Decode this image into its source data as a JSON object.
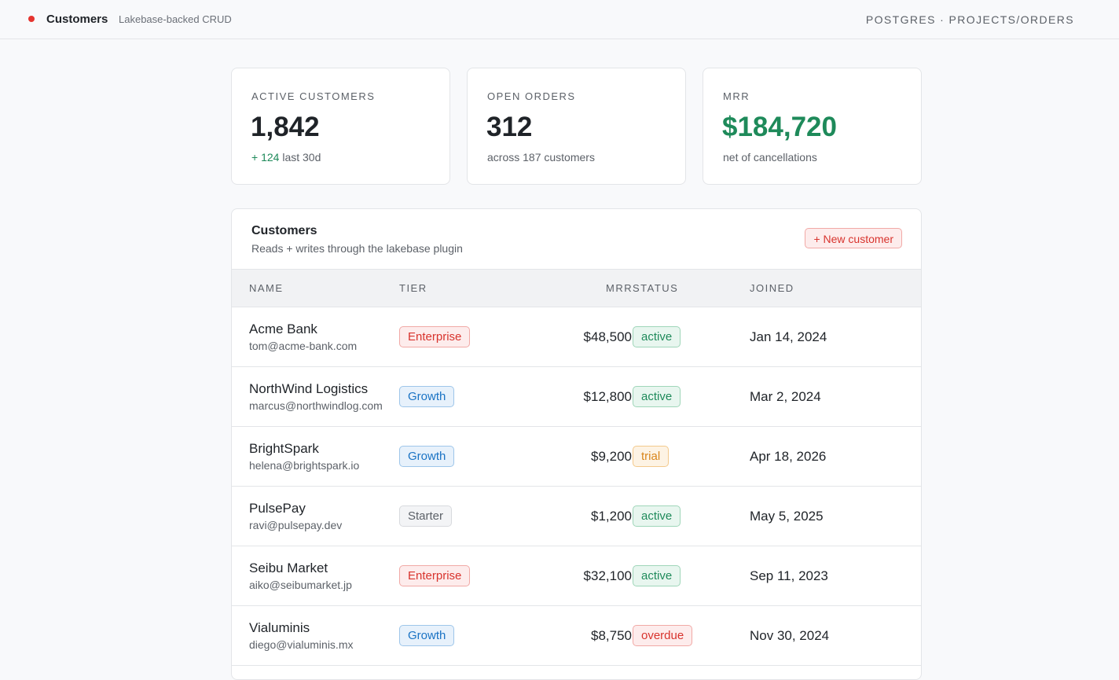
{
  "header": {
    "title": "Customers",
    "subtitle": "Lakebase-backed CRUD",
    "crumb": "POSTGRES · PROJECTS/ORDERS"
  },
  "stats": [
    {
      "label": "ACTIVE CUSTOMERS",
      "value": "1,842",
      "delta": "+ 124",
      "sub": " last 30d"
    },
    {
      "label": "OPEN ORDERS",
      "value": "312",
      "sub": "across 187 customers"
    },
    {
      "label": "MRR",
      "value": "$184,720",
      "sub": "net of cancellations"
    }
  ],
  "panel": {
    "title": "Customers",
    "subtitle": "Reads + writes through the lakebase plugin",
    "new_button": "+ New customer",
    "columns": {
      "name": "NAME",
      "tier": "TIER",
      "mrr": "MRR",
      "status": "STATUS",
      "joined": "JOINED"
    },
    "rows": [
      {
        "name": "Acme Bank",
        "email": "tom@acme-bank.com",
        "tier": "Enterprise",
        "mrr": "$48,500",
        "status": "active",
        "joined": "Jan 14, 2024"
      },
      {
        "name": "NorthWind Logistics",
        "email": "marcus@northwindlog.com",
        "tier": "Growth",
        "mrr": "$12,800",
        "status": "active",
        "joined": "Mar 2, 2024"
      },
      {
        "name": "BrightSpark",
        "email": "helena@brightspark.io",
        "tier": "Growth",
        "mrr": "$9,200",
        "status": "trial",
        "joined": "Apr 18, 2026"
      },
      {
        "name": "PulsePay",
        "email": "ravi@pulsepay.dev",
        "tier": "Starter",
        "mrr": "$1,200",
        "status": "active",
        "joined": "May 5, 2025"
      },
      {
        "name": "Seibu Market",
        "email": "aiko@seibumarket.jp",
        "tier": "Enterprise",
        "mrr": "$32,100",
        "status": "active",
        "joined": "Sep 11, 2023"
      },
      {
        "name": "Vialuminis",
        "email": "diego@vialuminis.mx",
        "tier": "Growth",
        "mrr": "$8,750",
        "status": "overdue",
        "joined": "Nov 30, 2024"
      }
    ]
  }
}
